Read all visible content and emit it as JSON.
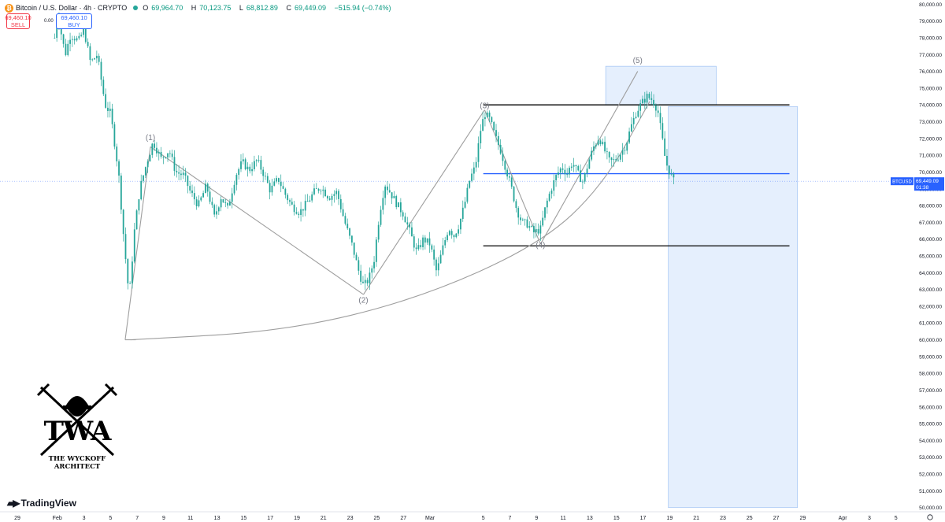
{
  "header": {
    "coin_glyph": "₿",
    "title": "Bitcoin / U.S. Dollar · 4h · CRYPTO",
    "o_label": "O",
    "o_value": "69,964.70",
    "h_label": "H",
    "h_value": "70,123.75",
    "l_label": "L",
    "l_value": "68,812.89",
    "c_label": "C",
    "c_value": "69,449.09",
    "change": "−515.94 (−0.74%)"
  },
  "trade": {
    "sell_price": "69,460.10",
    "sell_label": "SELL",
    "spread": "0.00",
    "buy_price": "69,460.10",
    "buy_label": "BUY"
  },
  "price_tag": {
    "symbol": "BTCUSD",
    "price": "69,449.09",
    "countdown": "01:38"
  },
  "logo": {
    "line1": "TWA",
    "line2": "THE WYCKOFF",
    "line3": "ARCHITECT"
  },
  "brand": {
    "name": "TradingView"
  },
  "colors": {
    "up": "#26a69a",
    "down": "#26a69a",
    "projection": "#cfe2fb",
    "level_line": "#2962ff",
    "wave_line": "#9e9e9e"
  },
  "chart_data": {
    "type": "candlestick",
    "symbol": "BTCUSD",
    "timeframe": "4h",
    "ylim": [
      49750,
      80250
    ],
    "y_ticks": [
      50000,
      51000,
      52000,
      53000,
      54000,
      55000,
      56000,
      57000,
      58000,
      59000,
      60000,
      61000,
      62000,
      63000,
      64000,
      65000,
      66000,
      67000,
      68000,
      69000,
      70000,
      71000,
      72000,
      73000,
      74000,
      75000,
      76000,
      77000,
      78000,
      79000,
      80000
    ],
    "y_tick_labels": [
      "50,000.00",
      "51,000.00",
      "52,000.00",
      "53,000.00",
      "54,000.00",
      "55,000.00",
      "56,000.00",
      "57,000.00",
      "58,000.00",
      "59,000.00",
      "60,000.00",
      "61,000.00",
      "62,000.00",
      "63,000.00",
      "64,000.00",
      "65,000.00",
      "66,000.00",
      "67,000.00",
      "68,000.00",
      "69,000.00",
      "70,000.00",
      "71,000.00",
      "72,000.00",
      "73,000.00",
      "74,000.00",
      "75,000.00",
      "76,000.00",
      "77,000.00",
      "78,000.00",
      "79,000.00",
      "80,000.00"
    ],
    "x_day_range": [
      0,
      68.5
    ],
    "x_ticks": [
      {
        "day": 0,
        "label": "29"
      },
      {
        "day": 3,
        "label": "Feb"
      },
      {
        "day": 5,
        "label": "3"
      },
      {
        "day": 7,
        "label": "5"
      },
      {
        "day": 9,
        "label": "7"
      },
      {
        "day": 11,
        "label": "9"
      },
      {
        "day": 13,
        "label": "11"
      },
      {
        "day": 15,
        "label": "13"
      },
      {
        "day": 17,
        "label": "15"
      },
      {
        "day": 19,
        "label": "17"
      },
      {
        "day": 21,
        "label": "19"
      },
      {
        "day": 23,
        "label": "21"
      },
      {
        "day": 25,
        "label": "23"
      },
      {
        "day": 27,
        "label": "25"
      },
      {
        "day": 29,
        "label": "27"
      },
      {
        "day": 31,
        "label": "Mar"
      },
      {
        "day": 35,
        "label": "5"
      },
      {
        "day": 37,
        "label": "7"
      },
      {
        "day": 39,
        "label": "9"
      },
      {
        "day": 41,
        "label": "11"
      },
      {
        "day": 43,
        "label": "13"
      },
      {
        "day": 45,
        "label": "15"
      },
      {
        "day": 47,
        "label": "17"
      },
      {
        "day": 49,
        "label": "19"
      },
      {
        "day": 51,
        "label": "21"
      },
      {
        "day": 53,
        "label": "23"
      },
      {
        "day": 55,
        "label": "25"
      },
      {
        "day": 57,
        "label": "27"
      },
      {
        "day": 59,
        "label": "29"
      },
      {
        "day": 62,
        "label": "Apr"
      },
      {
        "day": 64,
        "label": "3"
      },
      {
        "day": 66,
        "label": "5"
      }
    ],
    "price_path": [
      [
        2.8,
        78000
      ],
      [
        3.0,
        79500
      ],
      [
        3.6,
        77000
      ],
      [
        4.0,
        78200
      ],
      [
        4.6,
        77800
      ],
      [
        5.0,
        78500
      ],
      [
        5.5,
        76500
      ],
      [
        6.0,
        77000
      ],
      [
        6.6,
        74000
      ],
      [
        7.0,
        73500
      ],
      [
        7.6,
        70000
      ],
      [
        8.0,
        66000
      ],
      [
        8.4,
        62500
      ],
      [
        8.8,
        66500
      ],
      [
        9.2,
        69000
      ],
      [
        9.7,
        70500
      ],
      [
        10.2,
        71800
      ],
      [
        10.8,
        70800
      ],
      [
        11.4,
        71300
      ],
      [
        11.9,
        70000
      ],
      [
        12.5,
        69800
      ],
      [
        13.0,
        68800
      ],
      [
        13.6,
        68000
      ],
      [
        14.2,
        69200
      ],
      [
        14.8,
        67300
      ],
      [
        15.3,
        68500
      ],
      [
        15.8,
        67800
      ],
      [
        16.4,
        69800
      ],
      [
        16.9,
        70600
      ],
      [
        17.4,
        70100
      ],
      [
        18.0,
        70700
      ],
      [
        18.5,
        69900
      ],
      [
        19.0,
        68900
      ],
      [
        19.6,
        69600
      ],
      [
        20.1,
        68700
      ],
      [
        20.6,
        68000
      ],
      [
        21.2,
        67600
      ],
      [
        21.8,
        68200
      ],
      [
        22.3,
        68800
      ],
      [
        22.8,
        69100
      ],
      [
        23.4,
        68500
      ],
      [
        24.0,
        68800
      ],
      [
        24.6,
        67000
      ],
      [
        25.2,
        65500
      ],
      [
        25.6,
        64200
      ],
      [
        26.0,
        63200
      ],
      [
        26.4,
        63600
      ],
      [
        26.8,
        64800
      ],
      [
        27.2,
        67500
      ],
      [
        27.6,
        69300
      ],
      [
        28.0,
        68800
      ],
      [
        28.5,
        68100
      ],
      [
        29.0,
        67500
      ],
      [
        29.5,
        66400
      ],
      [
        30.0,
        65200
      ],
      [
        30.5,
        66000
      ],
      [
        31.0,
        65700
      ],
      [
        31.5,
        64000
      ],
      [
        31.9,
        65300
      ],
      [
        32.4,
        66700
      ],
      [
        32.8,
        66200
      ],
      [
        33.2,
        66900
      ],
      [
        33.6,
        68100
      ],
      [
        34.0,
        69600
      ],
      [
        34.4,
        70300
      ],
      [
        34.8,
        72500
      ],
      [
        35.1,
        73500
      ],
      [
        35.5,
        73100
      ],
      [
        35.9,
        72100
      ],
      [
        36.3,
        71300
      ],
      [
        36.7,
        70200
      ],
      [
        37.1,
        69100
      ],
      [
        37.5,
        67800
      ],
      [
        37.9,
        67000
      ],
      [
        38.3,
        66900
      ],
      [
        38.8,
        66400
      ],
      [
        39.3,
        66600
      ],
      [
        39.7,
        68000
      ],
      [
        40.1,
        69000
      ],
      [
        40.5,
        69800
      ],
      [
        40.9,
        70300
      ],
      [
        41.3,
        69900
      ],
      [
        41.7,
        70600
      ],
      [
        42.1,
        69900
      ],
      [
        42.5,
        69400
      ],
      [
        42.9,
        70600
      ],
      [
        43.3,
        71500
      ],
      [
        43.7,
        72100
      ],
      [
        44.1,
        71300
      ],
      [
        44.5,
        70600
      ],
      [
        44.9,
        70700
      ],
      [
        45.3,
        71100
      ],
      [
        45.7,
        71600
      ],
      [
        46.1,
        72700
      ],
      [
        46.5,
        73600
      ],
      [
        46.9,
        74100
      ],
      [
        47.3,
        74500
      ],
      [
        47.7,
        74300
      ],
      [
        48.1,
        73700
      ],
      [
        48.4,
        72200
      ],
      [
        48.7,
        70600
      ],
      [
        49.0,
        70000
      ],
      [
        49.3,
        69449
      ]
    ],
    "wave_labels": [
      {
        "label": "(1)",
        "day": 10.0,
        "price": 71900
      },
      {
        "label": "(2)",
        "day": 26.0,
        "price": 62200
      },
      {
        "label": "(3)",
        "day": 35.1,
        "price": 73800
      },
      {
        "label": "(4)",
        "day": 39.3,
        "price": 65500
      },
      {
        "label": "(5)",
        "day": 46.6,
        "price": 76500
      }
    ],
    "wave_lines": [
      [
        [
          8.1,
          60000
        ],
        [
          10.0,
          71500
        ]
      ],
      [
        [
          10.0,
          71500
        ],
        [
          26.0,
          62700
        ]
      ],
      [
        [
          26.0,
          62700
        ],
        [
          35.1,
          73700
        ]
      ],
      [
        [
          35.1,
          73700
        ],
        [
          39.3,
          65700
        ]
      ],
      [
        [
          39.3,
          65700
        ],
        [
          46.6,
          76000
        ]
      ]
    ],
    "arc_points": [
      [
        8.5,
        60000
      ],
      [
        20,
        60500
      ],
      [
        30,
        62400
      ],
      [
        39.3,
        65700
      ],
      [
        44,
        69200
      ],
      [
        47.5,
        74200
      ]
    ],
    "horizontal_lines": [
      {
        "price": 74000,
        "from_day": 35.0,
        "to_day": 58.0,
        "color": "#000000"
      },
      {
        "price": 69900,
        "from_day": 35.0,
        "to_day": 58.0,
        "color": "#2962ff"
      },
      {
        "price": 65600,
        "from_day": 35.0,
        "to_day": 58.0,
        "color": "#000000"
      }
    ],
    "boxes": [
      {
        "from_day": 44.2,
        "to_day": 52.5,
        "from_price": 74000,
        "to_price": 76300
      },
      {
        "from_day": 48.9,
        "to_day": 58.6,
        "from_price": 50000,
        "to_price": 73900
      }
    ],
    "current_price": 69449.09
  }
}
